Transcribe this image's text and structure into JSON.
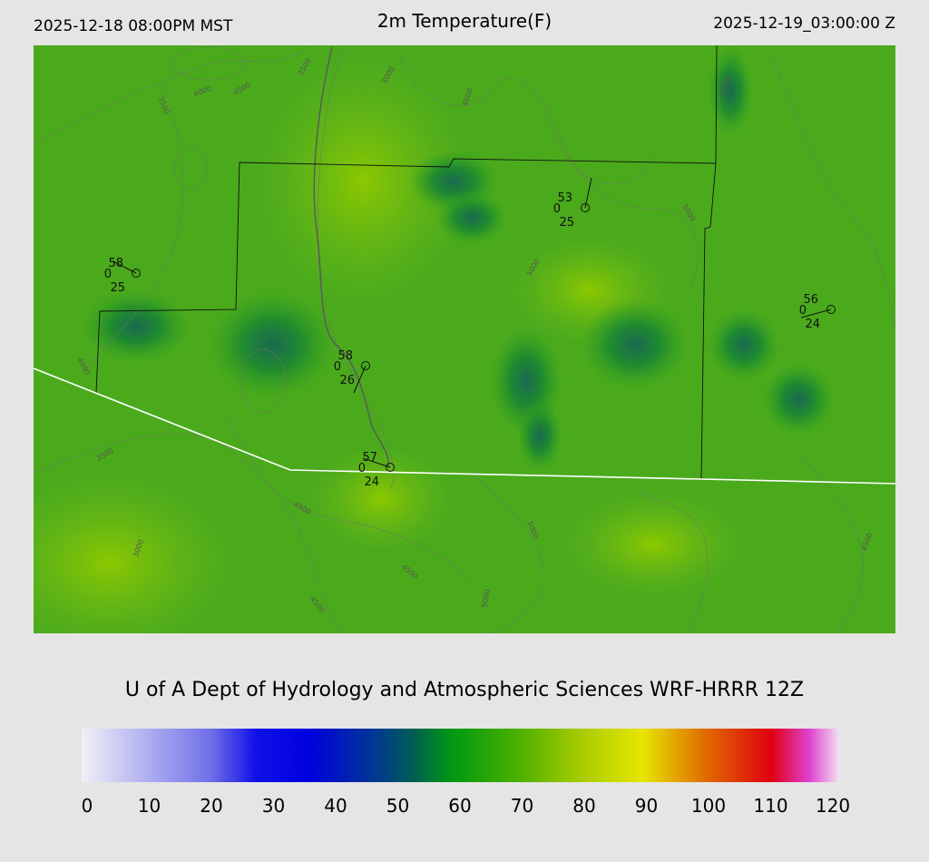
{
  "header": {
    "local_time": "2025-12-18 08:00PM MST",
    "title": "2m Temperature(F)",
    "utc_time": "2025-12-19_03:00:00 Z"
  },
  "map": {
    "stations": [
      {
        "temperature": 58,
        "wind": 0,
        "dewpoint": 25
      },
      {
        "temperature": 58,
        "wind": 0,
        "dewpoint": 26
      },
      {
        "temperature": 57,
        "wind": 0,
        "dewpoint": 24
      },
      {
        "temperature": 53,
        "wind": 0,
        "dewpoint": 25
      },
      {
        "temperature": 56,
        "wind": 0,
        "dewpoint": 24
      }
    ],
    "contour_labels": [
      "4000",
      "4500",
      "3500",
      "3500",
      "3000",
      "4000",
      "5000",
      "5000",
      "5500",
      "4000",
      "3500",
      "4500",
      "4500",
      "4500",
      "5000",
      "5000",
      "4500",
      "3000"
    ]
  },
  "credit": "U of A Dept of Hydrology and Atmospheric Sciences WRF-HRRR 12Z",
  "colorbar": {
    "ticks": [
      0,
      10,
      20,
      30,
      40,
      50,
      60,
      70,
      80,
      90,
      100,
      110,
      120
    ]
  }
}
